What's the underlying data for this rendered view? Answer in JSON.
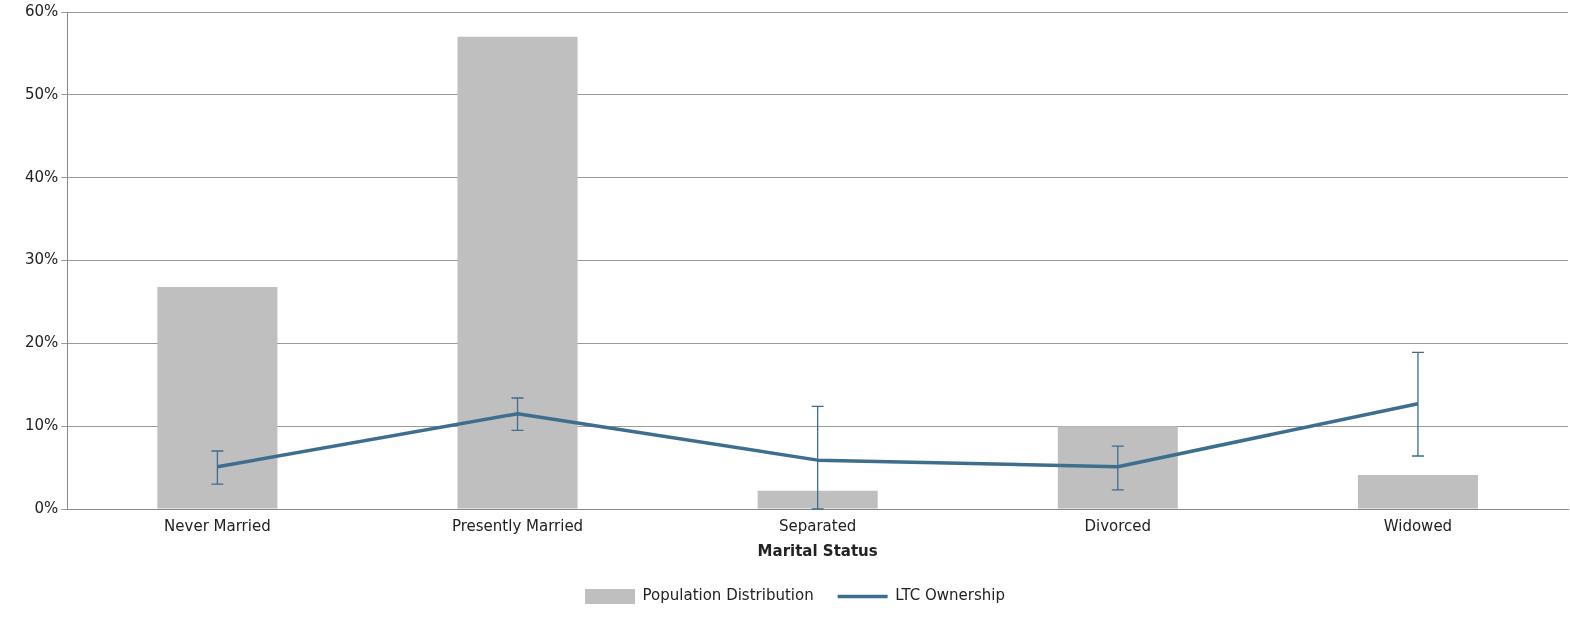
{
  "chart_data": {
    "type": "bar",
    "xlabel": "Marital Status",
    "categories": [
      "Never Married",
      "Presently Married",
      "Separated",
      "Divorced",
      "Widowed"
    ],
    "series": [
      {
        "name": "Population Distribution",
        "color": "#bfbfbf",
        "values": [
          26.8,
          57.0,
          2.2,
          10.0,
          4.1
        ]
      },
      {
        "name": "LTC Ownership",
        "type": "line",
        "color": "#3d6e8e",
        "values": [
          5.1,
          11.5,
          5.9,
          5.1,
          12.7
        ],
        "errors": [
          [
            3.0,
            7.0
          ],
          [
            9.5,
            13.4
          ],
          [
            0,
            12.4
          ],
          [
            2.3,
            7.6
          ],
          [
            6.4,
            18.9
          ]
        ]
      }
    ],
    "ylim": [
      0,
      60
    ],
    "yticks": [
      {
        "value": 0,
        "label": "0%"
      },
      {
        "value": 10,
        "label": "10%"
      },
      {
        "value": 20,
        "label": "20%"
      },
      {
        "value": 30,
        "label": "30%"
      },
      {
        "value": 40,
        "label": "40%"
      },
      {
        "value": 50,
        "label": "50%"
      },
      {
        "value": 60,
        "label": "60%"
      }
    ],
    "grid": "y",
    "legend": "bottom",
    "marker": "none"
  }
}
